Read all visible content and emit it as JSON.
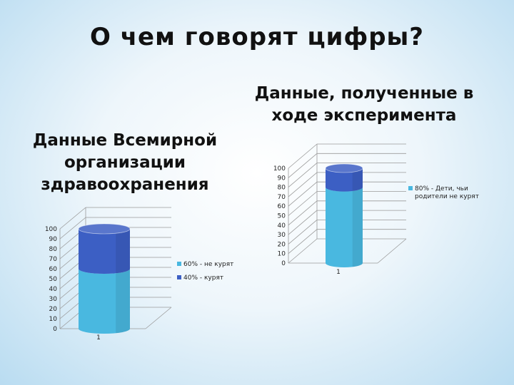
{
  "page": {
    "title": "О чем говорят цифры?"
  },
  "chart_data": [
    {
      "type": "bar",
      "subtitle_lines": [
        "Данные Всемирной",
        "организации",
        "здравоохранения"
      ],
      "categories": [
        "1"
      ],
      "ylim": [
        0,
        100
      ],
      "yticks": [
        "0",
        "10",
        "20",
        "30",
        "40",
        "50",
        "60",
        "70",
        "80",
        "90",
        "100"
      ],
      "stacked": true,
      "series": [
        {
          "name": "60% - не курят",
          "values": [
            60
          ],
          "color": "#49b8e0"
        },
        {
          "name": "40% - курят",
          "values": [
            40
          ],
          "color": "#3c5fc4"
        }
      ]
    },
    {
      "type": "bar",
      "subtitle_lines": [
        "Данные, полученные в",
        "ходе эксперимента"
      ],
      "categories": [
        "1"
      ],
      "ylim": [
        0,
        100
      ],
      "yticks": [
        "0",
        "10",
        "20",
        "30",
        "40",
        "50",
        "60",
        "70",
        "80",
        "90",
        "100"
      ],
      "stacked": true,
      "series": [
        {
          "name": "80% - Дети, чьи родители не курят",
          "legend_lines": [
            "80% - Дети, чьи",
            "родители не курят"
          ],
          "values": [
            80
          ],
          "color": "#49b8e0"
        },
        {
          "name": "",
          "values": [
            20
          ],
          "color": "#3c5fc4"
        }
      ]
    }
  ]
}
